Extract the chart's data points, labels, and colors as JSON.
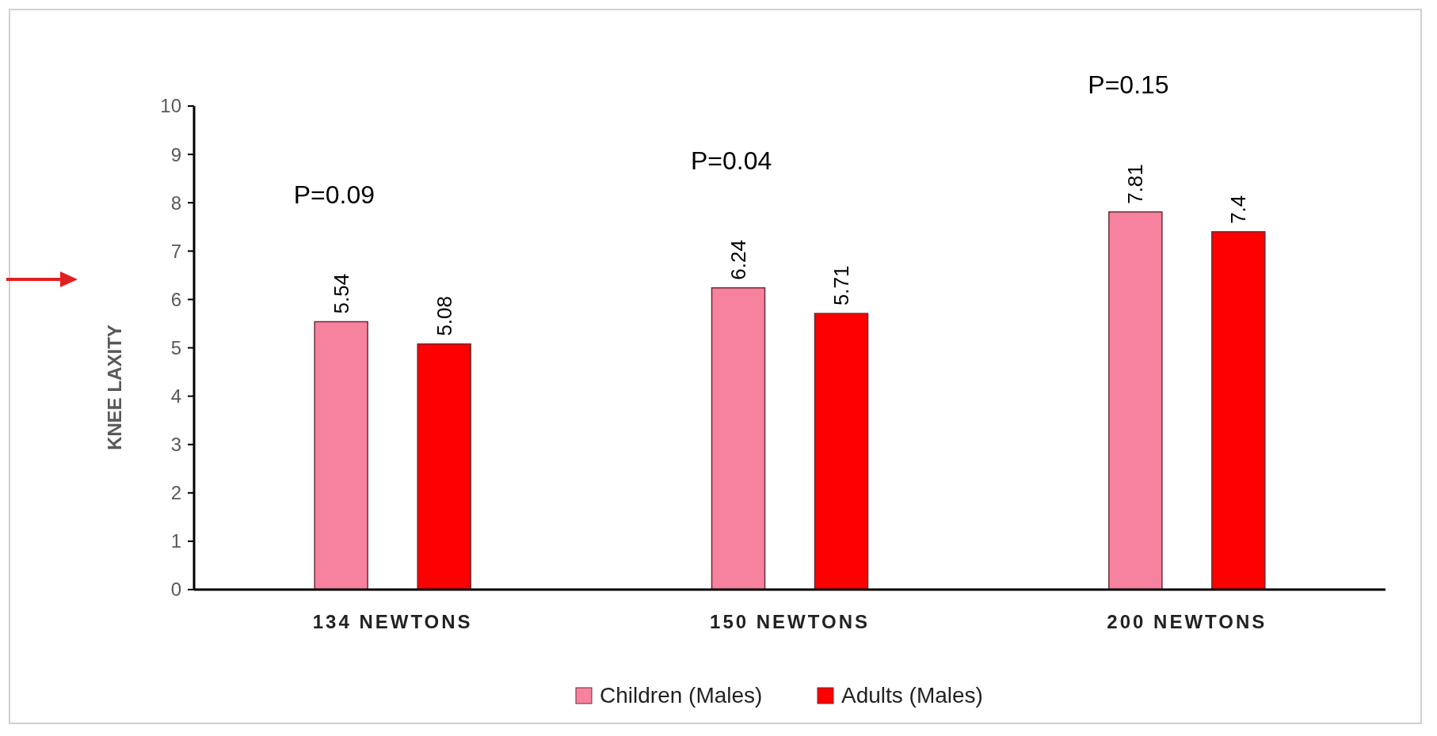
{
  "chart_data": {
    "type": "bar",
    "ylabel": "KNEE LAXITY",
    "categories": [
      "134 NEWTONS",
      "150 NEWTONS",
      "200 NEWTONS"
    ],
    "series": [
      {
        "name": "Children (Males)",
        "color": "#f7829f",
        "values": [
          5.54,
          6.24,
          7.81
        ]
      },
      {
        "name": "Adults (Males)",
        "color": "#ff0000",
        "values": [
          5.08,
          5.71,
          7.4
        ]
      }
    ],
    "ylim": [
      0,
      10
    ],
    "yticks": [
      0,
      1,
      2,
      3,
      4,
      5,
      6,
      7,
      8,
      9,
      10
    ],
    "data_labels": true,
    "legend": "bottom",
    "grid": false,
    "annotations": [
      "P=0.09",
      "P=0.04",
      "P=0.15"
    ]
  }
}
